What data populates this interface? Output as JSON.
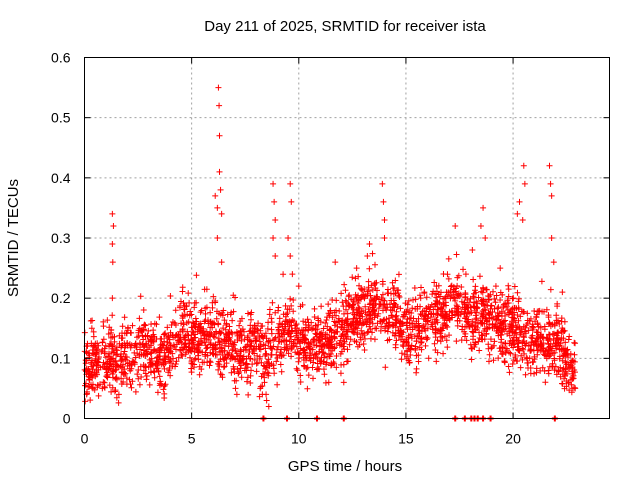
{
  "chart_data": {
    "type": "scatter",
    "title": "Day 211 of 2025, SRMTID for receiver ista",
    "xlabel": "GPS time / hours",
    "ylabel": "SRMTID / TECUs",
    "xlim": [
      0,
      24.5
    ],
    "ylim": [
      0,
      0.6
    ],
    "xticks": [
      0,
      5,
      10,
      15,
      20
    ],
    "xtick_labels": [
      "0",
      "5",
      "10",
      "15",
      "20"
    ],
    "yticks": [
      0,
      0.1,
      0.2,
      0.3,
      0.4,
      0.5,
      0.6
    ],
    "ytick_labels": [
      "0",
      "0.1",
      "0.2",
      "0.3",
      "0.4",
      "0.5",
      "0.6"
    ],
    "grid": true,
    "marker": "+",
    "color": "#ff0000",
    "series": [
      {
        "name": "SRMTID",
        "baseline": [
          [
            0,
            0.085
          ],
          [
            0.5,
            0.095
          ],
          [
            1.0,
            0.1
          ],
          [
            1.5,
            0.09
          ],
          [
            2.0,
            0.1
          ],
          [
            2.5,
            0.12
          ],
          [
            3.0,
            0.11
          ],
          [
            3.5,
            0.1
          ],
          [
            4.0,
            0.11
          ],
          [
            4.5,
            0.15
          ],
          [
            5.0,
            0.13
          ],
          [
            5.5,
            0.14
          ],
          [
            6.0,
            0.14
          ],
          [
            6.5,
            0.13
          ],
          [
            7.0,
            0.12
          ],
          [
            7.5,
            0.11
          ],
          [
            8.0,
            0.12
          ],
          [
            8.5,
            0.11
          ],
          [
            9.0,
            0.12
          ],
          [
            9.5,
            0.16
          ],
          [
            10.0,
            0.12
          ],
          [
            10.5,
            0.12
          ],
          [
            11.0,
            0.12
          ],
          [
            11.5,
            0.13
          ],
          [
            12.0,
            0.14
          ],
          [
            12.5,
            0.17
          ],
          [
            13.0,
            0.18
          ],
          [
            13.5,
            0.19
          ],
          [
            14.0,
            0.17
          ],
          [
            14.5,
            0.17
          ],
          [
            15.0,
            0.15
          ],
          [
            15.5,
            0.14
          ],
          [
            16.0,
            0.16
          ],
          [
            16.5,
            0.17
          ],
          [
            17.0,
            0.18
          ],
          [
            17.5,
            0.19
          ],
          [
            18.0,
            0.17
          ],
          [
            18.5,
            0.17
          ],
          [
            19.0,
            0.16
          ],
          [
            19.5,
            0.15
          ],
          [
            20.0,
            0.15
          ],
          [
            20.5,
            0.14
          ],
          [
            21.0,
            0.13
          ],
          [
            21.5,
            0.12
          ],
          [
            22.0,
            0.13
          ],
          [
            22.5,
            0.09
          ],
          [
            22.9,
            0.08
          ]
        ],
        "spikes": [
          [
            1.3,
            0.34
          ],
          [
            1.35,
            0.32
          ],
          [
            1.3,
            0.29
          ],
          [
            1.32,
            0.26
          ],
          [
            1.3,
            0.2
          ],
          [
            6.1,
            0.37
          ],
          [
            6.2,
            0.35
          ],
          [
            6.25,
            0.55
          ],
          [
            6.28,
            0.52
          ],
          [
            6.3,
            0.47
          ],
          [
            6.3,
            0.41
          ],
          [
            6.35,
            0.38
          ],
          [
            6.4,
            0.34
          ],
          [
            6.2,
            0.3
          ],
          [
            6.4,
            0.26
          ],
          [
            8.8,
            0.39
          ],
          [
            8.85,
            0.36
          ],
          [
            8.9,
            0.33
          ],
          [
            8.8,
            0.3
          ],
          [
            8.9,
            0.27
          ],
          [
            9.6,
            0.39
          ],
          [
            9.65,
            0.36
          ],
          [
            9.5,
            0.3
          ],
          [
            9.6,
            0.27
          ],
          [
            9.7,
            0.24
          ],
          [
            10.0,
            0.22
          ],
          [
            11.7,
            0.26
          ],
          [
            12.7,
            0.25
          ],
          [
            13.3,
            0.29
          ],
          [
            13.2,
            0.27
          ],
          [
            13.9,
            0.39
          ],
          [
            13.95,
            0.36
          ],
          [
            14.0,
            0.33
          ],
          [
            14.0,
            0.3
          ],
          [
            17.3,
            0.32
          ],
          [
            17.8,
            0.24
          ],
          [
            18.1,
            0.28
          ],
          [
            18.5,
            0.32
          ],
          [
            18.6,
            0.35
          ],
          [
            18.7,
            0.3
          ],
          [
            19.2,
            0.22
          ],
          [
            19.4,
            0.25
          ],
          [
            20.2,
            0.34
          ],
          [
            20.3,
            0.36
          ],
          [
            20.5,
            0.42
          ],
          [
            20.55,
            0.39
          ],
          [
            20.45,
            0.33
          ],
          [
            21.7,
            0.42
          ],
          [
            21.75,
            0.39
          ],
          [
            21.8,
            0.37
          ],
          [
            21.8,
            0.3
          ],
          [
            21.9,
            0.26
          ],
          [
            22.3,
            0.21
          ]
        ],
        "dips": [
          [
            8.2,
            0.05
          ],
          [
            8.3,
            0.04
          ],
          [
            8.4,
            0.06
          ],
          [
            8.5,
            0.03
          ],
          [
            8.6,
            0.02
          ],
          [
            0.1,
            0.04
          ],
          [
            11.4,
            0.06
          ],
          [
            12.1,
            0.06
          ],
          [
            22.8,
            0.05
          ],
          [
            22.9,
            0.05
          ],
          [
            22.6,
            0.06
          ]
        ],
        "zero_values": [
          8.35,
          9.45,
          10.85,
          12.1,
          17.3,
          17.75,
          18.05,
          18.2,
          18.35,
          18.6,
          18.95,
          21.95
        ]
      }
    ]
  }
}
